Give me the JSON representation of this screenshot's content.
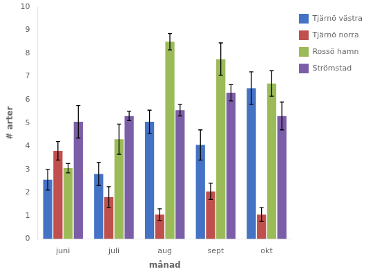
{
  "chart_data": {
    "type": "bar",
    "categories": [
      "juni",
      "juli",
      "aug",
      "sept",
      "okt"
    ],
    "series": [
      {
        "name": "Tjärnö västra",
        "color": "#4472C4",
        "values": [
          2.55,
          2.8,
          5.05,
          4.05,
          6.5
        ],
        "errors": [
          0.45,
          0.5,
          0.5,
          0.65,
          0.7
        ]
      },
      {
        "name": "Tjärnö norra",
        "color": "#C0504D",
        "values": [
          3.8,
          1.8,
          1.05,
          2.05,
          1.05
        ],
        "errors": [
          0.4,
          0.45,
          0.25,
          0.35,
          0.3
        ]
      },
      {
        "name": "Rossö hamn",
        "color": "#9BBB59",
        "values": [
          3.05,
          4.3,
          8.5,
          7.75,
          6.7
        ],
        "errors": [
          0.2,
          0.65,
          0.35,
          0.7,
          0.55
        ]
      },
      {
        "name": "Strömstad",
        "color": "#7B5EA7",
        "values": [
          5.05,
          5.3,
          5.55,
          6.3,
          5.3
        ],
        "errors": [
          0.7,
          0.2,
          0.25,
          0.35,
          0.6
        ]
      }
    ],
    "xlabel": "månad",
    "ylabel": "# arter",
    "ylim": [
      0,
      10
    ],
    "yticks": [
      0,
      1,
      2,
      3,
      4,
      5,
      6,
      7,
      8,
      9,
      10
    ],
    "grid": false,
    "legend": "upper right"
  }
}
